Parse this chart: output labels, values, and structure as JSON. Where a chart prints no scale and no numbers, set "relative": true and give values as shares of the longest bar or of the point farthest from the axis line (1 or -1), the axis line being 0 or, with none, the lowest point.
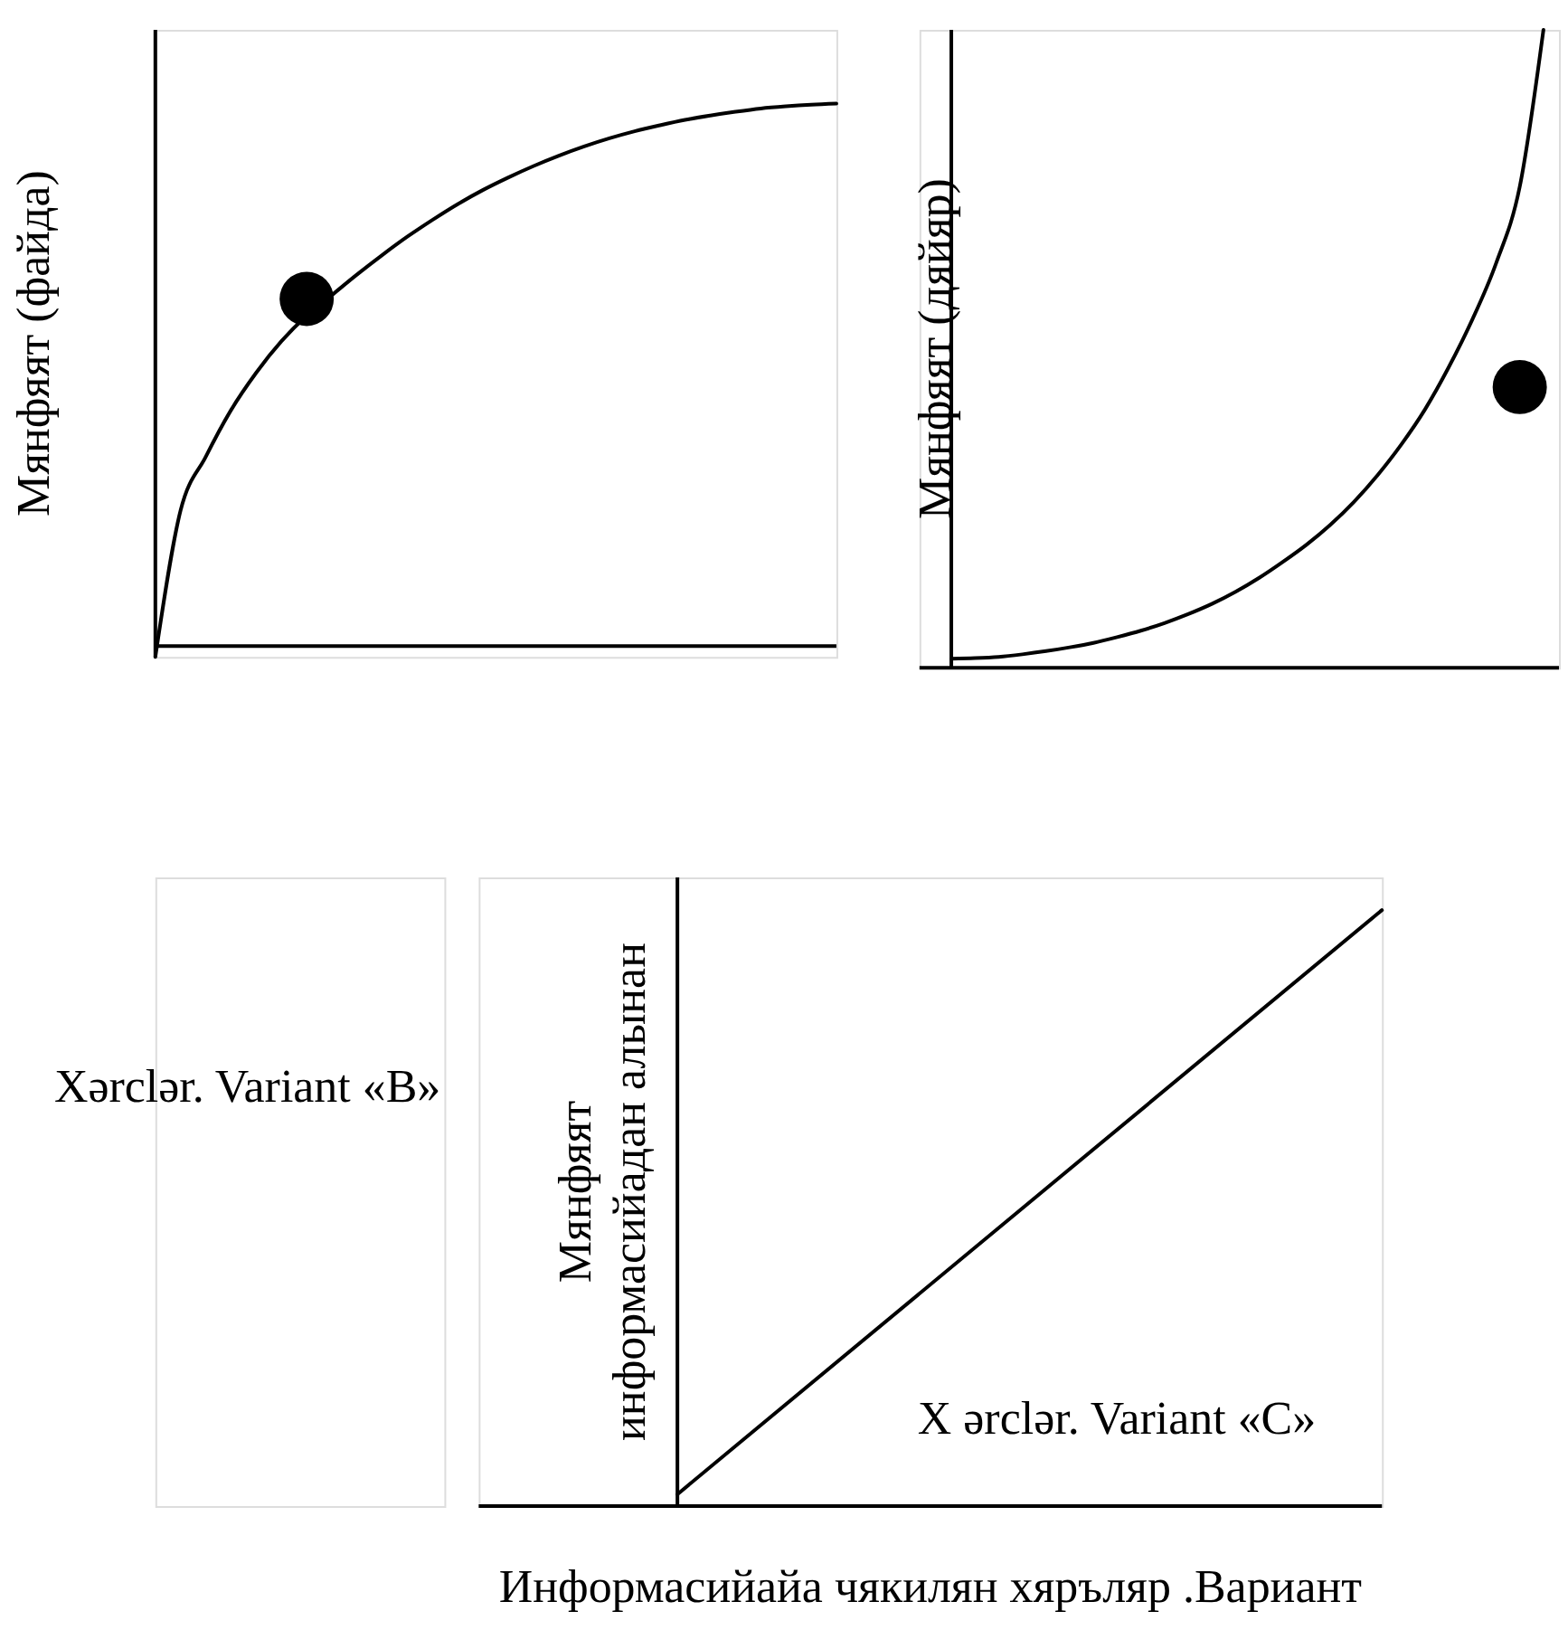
{
  "chart_data": [
    {
      "type": "line",
      "relative": true,
      "tick_labels": false,
      "ylabel": "Мянфяят (файда)",
      "categories": [
        null,
        null,
        null,
        null,
        null,
        null,
        null,
        null,
        null,
        null,
        null,
        null,
        null,
        null,
        null,
        null,
        null,
        null,
        null,
        null,
        null,
        null,
        null,
        null,
        null,
        null,
        null,
        null
      ],
      "series": [
        {
          "color": "#000000",
          "values": [
            -0.02,
            0.25,
            0.349,
            0.435,
            0.504,
            0.562,
            0.609,
            0.647,
            0.685,
            0.721,
            0.755,
            0.786,
            0.815,
            0.841,
            0.864,
            0.885,
            0.904,
            0.921,
            0.936,
            0.949,
            0.96,
            0.97,
            0.978,
            0.985,
            0.991,
            0.995,
            0.998,
            1
          ]
        },
        {
          "color": "#000000",
          "marker": "circle",
          "values": [
            null,
            null,
            null,
            null,
            null,
            null,
            0.64,
            null,
            null,
            null,
            null,
            null,
            null,
            null,
            null,
            null,
            null,
            null,
            null,
            null,
            null,
            null,
            null,
            null,
            null,
            null,
            null,
            null
          ]
        }
      ]
    },
    {
      "type": "line",
      "relative": true,
      "tick_labels": false,
      "ylabel": "Мянфяят (дяйяр)",
      "categories": [
        null,
        null,
        null,
        null,
        null,
        null,
        null,
        null,
        null,
        null,
        null,
        null,
        null,
        null,
        null,
        null,
        null,
        null,
        null,
        null,
        null,
        null,
        null,
        null,
        null,
        null
      ],
      "series": [
        {
          "color": "#000000",
          "values": [
            0.014,
            0.015,
            0.017,
            0.021,
            0.026,
            0.032,
            0.039,
            0.048,
            0.058,
            0.07,
            0.084,
            0.1,
            0.119,
            0.141,
            0.166,
            0.193,
            0.224,
            0.26,
            0.302,
            0.35,
            0.405,
            0.471,
            0.546,
            0.634,
            0.754,
            1
          ]
        },
        {
          "color": "#000000",
          "marker": "circle",
          "values": [
            null,
            null,
            null,
            null,
            null,
            null,
            null,
            null,
            null,
            null,
            null,
            null,
            null,
            null,
            null,
            null,
            null,
            null,
            null,
            null,
            null,
            null,
            null,
            null,
            0.44,
            null
          ]
        }
      ]
    },
    {
      "type": "line",
      "relative": true,
      "tick_labels": false,
      "ylabel": "Мянфяят информасийадан алынан",
      "xlabel": "Информасийайа чякилян хяръляр .Вариант",
      "annotations": [
        "Xərclər. Variant «B»",
        "X ərclər. Variant «C»"
      ],
      "categories": [
        null,
        null
      ],
      "series": [
        {
          "color": "#000000",
          "values": [
            0.02,
            1
          ]
        }
      ]
    }
  ]
}
